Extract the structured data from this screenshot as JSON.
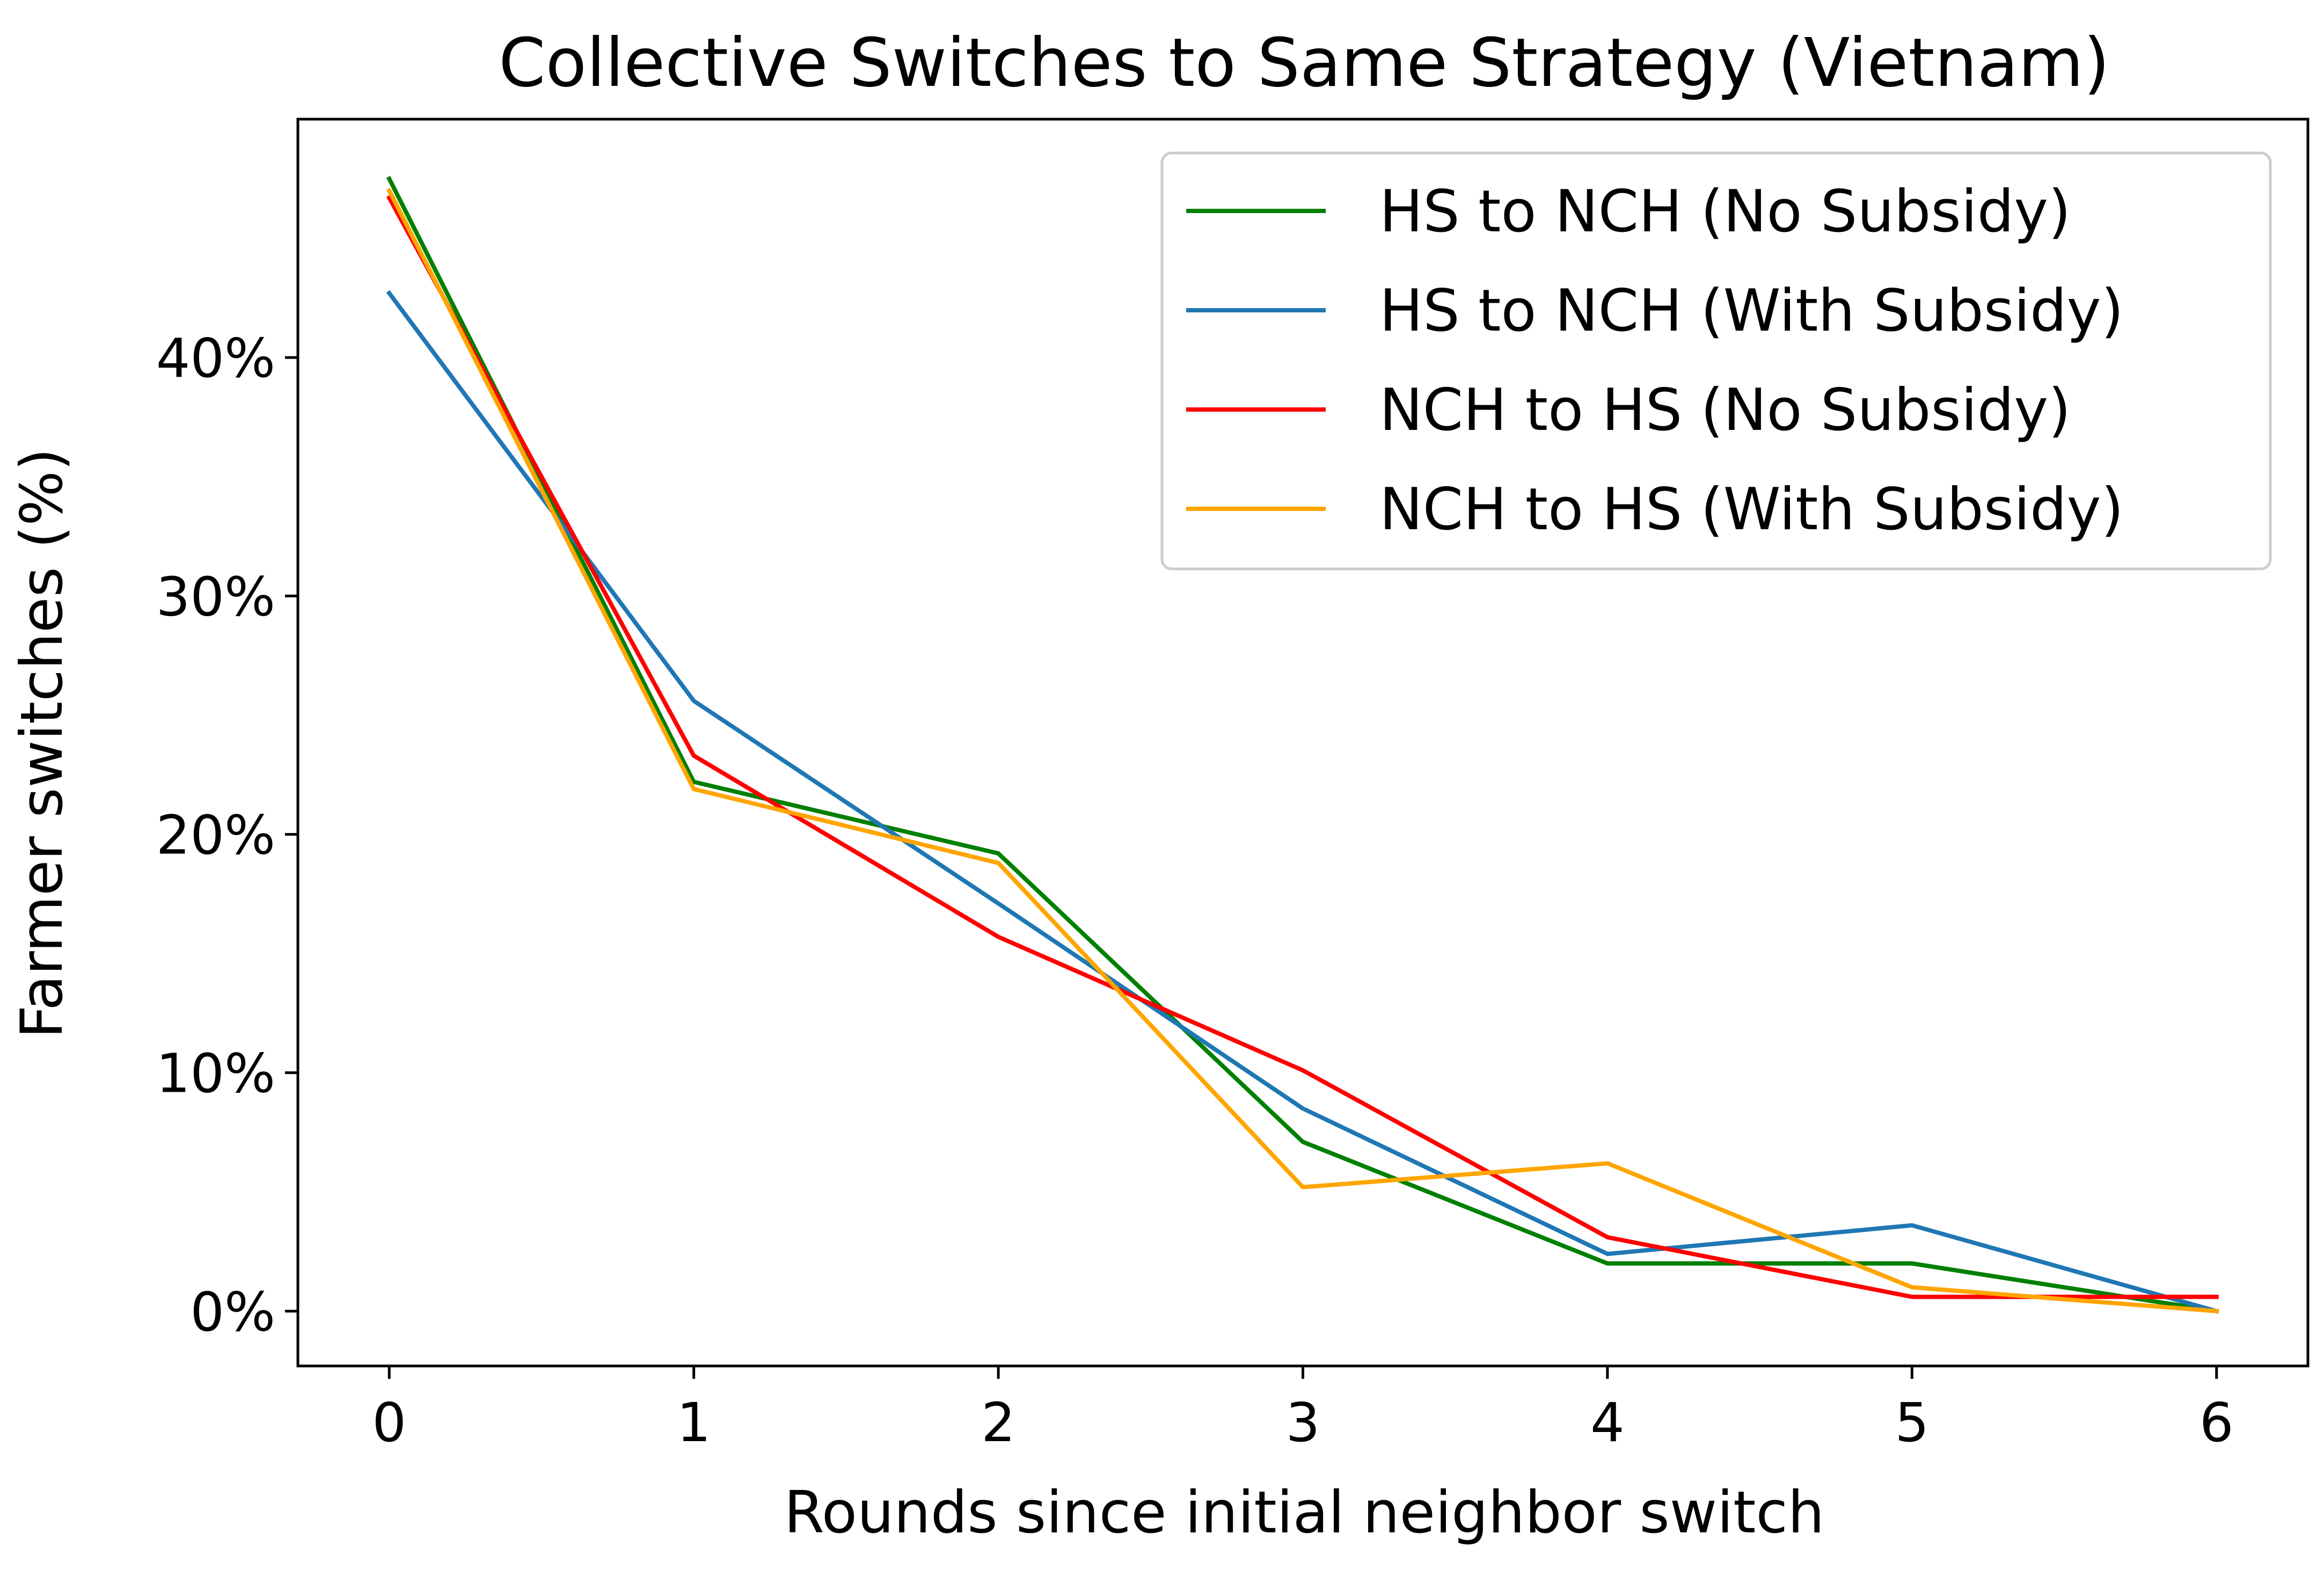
{
  "chart_data": {
    "type": "line",
    "title": "Collective Switches to Same Strategy (Vietnam)",
    "xlabel": "Rounds since initial neighbor switch",
    "ylabel": "Farmer switches (%)",
    "x": [
      0,
      1,
      2,
      3,
      4,
      5,
      6
    ],
    "xlim": [
      -0.3,
      6.3
    ],
    "ylim": [
      -2.3,
      50
    ],
    "xticks": [
      0,
      1,
      2,
      3,
      4,
      5,
      6
    ],
    "xtick_labels": [
      "0",
      "1",
      "2",
      "3",
      "4",
      "5",
      "6"
    ],
    "yticks": [
      0,
      10,
      20,
      30,
      40
    ],
    "ytick_labels": [
      "0%",
      "10%",
      "20%",
      "30%",
      "40%"
    ],
    "grid": false,
    "legend_position": "top-right",
    "series": [
      {
        "name": "HS to NCH (No Subsidy)",
        "color": "#008000",
        "values": [
          47.5,
          22.2,
          19.2,
          7.1,
          2.0,
          2.0,
          0.0
        ]
      },
      {
        "name": "HS to NCH (With Subsidy)",
        "color": "#1f77b4",
        "values": [
          42.7,
          25.6,
          17.1,
          8.5,
          2.4,
          3.6,
          0.0
        ]
      },
      {
        "name": "NCH to HS (No Subsidy)",
        "color": "#ff0000",
        "values": [
          46.7,
          23.3,
          15.7,
          10.1,
          3.1,
          0.6,
          0.6
        ]
      },
      {
        "name": "NCH to HS (With Subsidy)",
        "color": "#ffa500",
        "values": [
          47.0,
          21.9,
          18.8,
          5.2,
          6.2,
          1.0,
          0.0
        ]
      }
    ]
  }
}
